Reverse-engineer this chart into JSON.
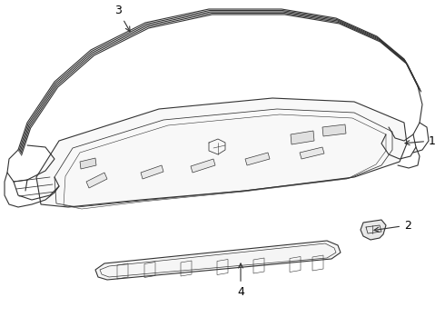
{
  "background_color": "#ffffff",
  "line_color": "#333333",
  "line_width": 0.8,
  "fig_width": 4.9,
  "fig_height": 3.6,
  "dpi": 100
}
